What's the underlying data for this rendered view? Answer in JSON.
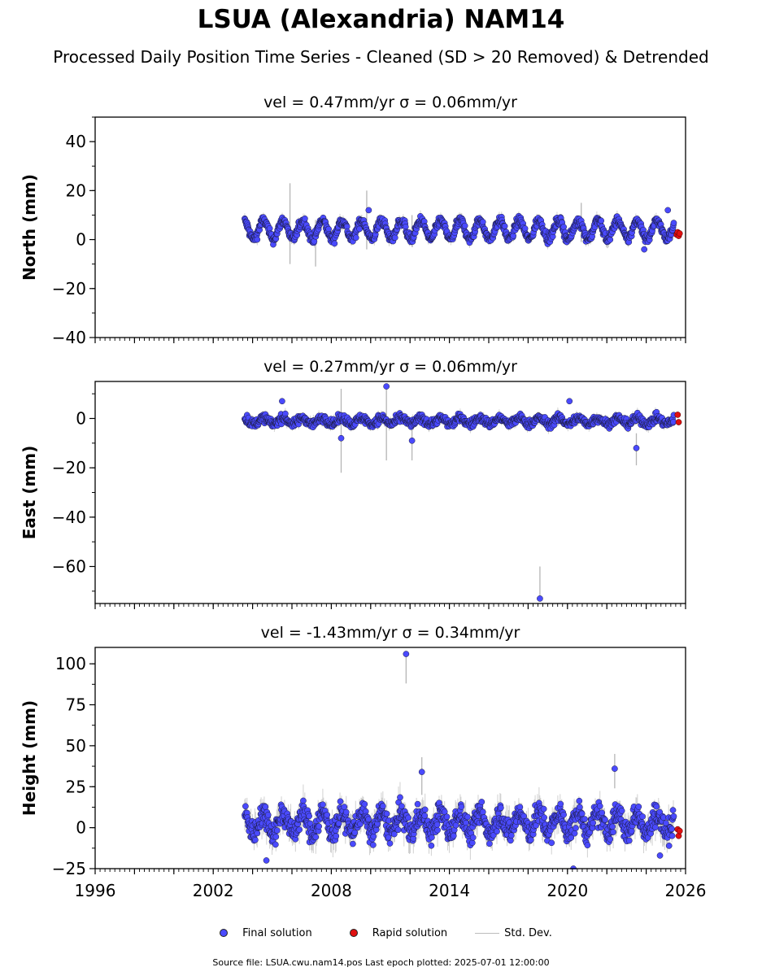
{
  "title": "LSUA (Alexandria) NAM14",
  "subtitle": "Processed Daily Position Time Series - Cleaned (SD > 20 Removed) & Detrended",
  "footer": "Source file: LSUA.cwu.nam14.pos  Last epoch plotted: 2025-07-01 12:00:00",
  "legend": [
    {
      "label": "Final solution",
      "color": "#4a4aff",
      "marker": "dot"
    },
    {
      "label": "Rapid solution",
      "color": "#e01010",
      "marker": "dot"
    },
    {
      "label": "Std. Dev.",
      "color": "#bcbcbc",
      "marker": "line"
    }
  ],
  "chart_data": [
    {
      "type": "scatter",
      "title": "vel = 0.47mm/yr   σ = 0.06mm/yr",
      "ylabel": "North (mm)",
      "xlim": [
        1996,
        2026
      ],
      "ylim": [
        -40,
        50
      ],
      "yticks": [
        -40,
        -20,
        0,
        20,
        40
      ],
      "ytick_labels": [
        "−40",
        "−20",
        "0",
        "20",
        "40"
      ],
      "grid": false,
      "series": [
        {
          "name": "Final solution",
          "color": "#4a4aff",
          "x_range": [
            2003.6,
            2025.4
          ],
          "level": 4,
          "amplitude": 3.8,
          "noise": 1.8,
          "outliers": [
            {
              "x": 2009.9,
              "y": 12
            },
            {
              "x": 2023.9,
              "y": -4
            },
            {
              "x": 2025.1,
              "y": 12
            }
          ]
        },
        {
          "name": "Rapid solution",
          "color": "#e01010",
          "points": [
            [
              2025.55,
              2
            ],
            [
              2025.6,
              3
            ],
            [
              2025.65,
              1.5
            ],
            [
              2025.7,
              2.5
            ]
          ]
        }
      ],
      "stddev_spikes": [
        [
          2005.9,
          -10,
          23
        ],
        [
          2007.2,
          -11,
          8
        ],
        [
          2009.8,
          -4,
          20
        ],
        [
          2012.1,
          -3,
          10
        ],
        [
          2020.7,
          -1,
          15
        ]
      ]
    },
    {
      "type": "scatter",
      "title": "vel = 0.27mm/yr   σ = 0.06mm/yr",
      "ylabel": "East (mm)",
      "xlim": [
        1996,
        2026
      ],
      "ylim": [
        -75,
        15
      ],
      "yticks": [
        -60,
        -40,
        -20,
        0
      ],
      "ytick_labels": [
        "−60",
        "−40",
        "−20",
        "0"
      ],
      "grid": false,
      "series": [
        {
          "name": "Final solution",
          "color": "#4a4aff",
          "x_range": [
            2003.6,
            2025.4
          ],
          "level": -1,
          "amplitude": 1.2,
          "noise": 1.6,
          "outliers": [
            {
              "x": 2005.5,
              "y": 7
            },
            {
              "x": 2008.5,
              "y": -8
            },
            {
              "x": 2010.8,
              "y": 13
            },
            {
              "x": 2012.1,
              "y": -9
            },
            {
              "x": 2018.6,
              "y": -73
            },
            {
              "x": 2023.5,
              "y": -12
            },
            {
              "x": 2020.1,
              "y": 7
            }
          ]
        },
        {
          "name": "Rapid solution",
          "color": "#e01010",
          "points": [
            [
              2025.6,
              1.5
            ],
            [
              2025.65,
              -1.5
            ]
          ]
        }
      ],
      "stddev_spikes": [
        [
          2008.5,
          -22,
          12
        ],
        [
          2010.8,
          -17,
          13
        ],
        [
          2012.1,
          -17,
          -4
        ],
        [
          2018.6,
          -73,
          -60
        ],
        [
          2023.5,
          -19,
          -6
        ]
      ]
    },
    {
      "type": "scatter",
      "title": "vel = -1.43mm/yr   σ = 0.34mm/yr",
      "ylabel": "Height (mm)",
      "xlim": [
        1996,
        2026
      ],
      "ylim": [
        -25,
        110
      ],
      "yticks": [
        -25,
        0,
        25,
        50,
        75,
        100
      ],
      "ytick_labels": [
        "−25",
        "0",
        "25",
        "50",
        "75",
        "100"
      ],
      "xticks": [
        1996,
        2002,
        2008,
        2014,
        2020,
        2026
      ],
      "xtick_labels": [
        "1996",
        "2002",
        "2008",
        "2014",
        "2020",
        "2026"
      ],
      "grid": false,
      "series": [
        {
          "name": "Final solution",
          "color": "#4a4aff",
          "x_range": [
            2003.6,
            2025.4
          ],
          "level": 3,
          "amplitude": 6,
          "noise": 7,
          "outliers": [
            {
              "x": 2011.8,
              "y": 106
            },
            {
              "x": 2004.7,
              "y": -20
            },
            {
              "x": 2020.3,
              "y": -25
            },
            {
              "x": 2022.4,
              "y": 36
            },
            {
              "x": 2024.7,
              "y": -17
            },
            {
              "x": 2012.6,
              "y": 34
            }
          ]
        },
        {
          "name": "Rapid solution",
          "color": "#e01010",
          "points": [
            [
              2025.6,
              -1
            ],
            [
              2025.65,
              -5
            ],
            [
              2025.7,
              -2
            ]
          ]
        }
      ],
      "stddev_spikes": [
        [
          2011.8,
          88,
          106
        ],
        [
          2012.6,
          20,
          43
        ],
        [
          2022.4,
          24,
          45
        ]
      ]
    }
  ]
}
